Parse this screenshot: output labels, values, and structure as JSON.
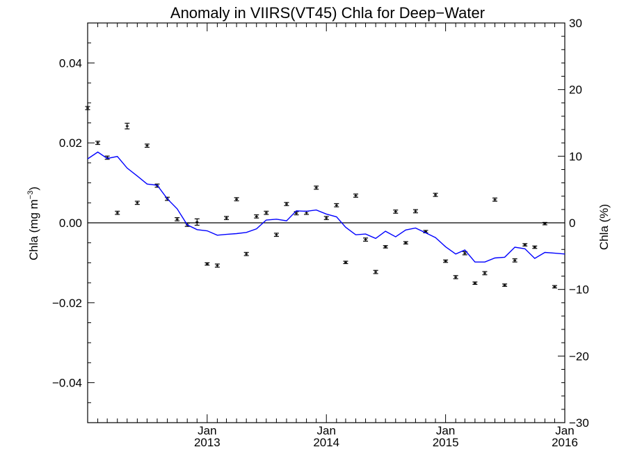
{
  "chart_data": {
    "type": "line",
    "title": "Anomaly in VIIRS(VT45) Chla for Deep−Water",
    "ylabel": "Chla (mg m",
    "ylabel_sup": "−3",
    "ylabel_close": ")",
    "y2label": "Chla (%)",
    "xlim": [
      "2012-01-01",
      "2016-01-01"
    ],
    "ylim": [
      -0.05,
      0.05
    ],
    "y2lim": [
      -30,
      30
    ],
    "yticks": [
      -0.04,
      -0.02,
      0.0,
      0.02,
      0.04
    ],
    "ytick_labels": [
      "−0.04",
      "−0.02",
      "0.00",
      "0.02",
      "0.04"
    ],
    "y2ticks": [
      -30,
      -20,
      -10,
      0,
      10,
      20,
      30
    ],
    "y2tick_labels": [
      "−30",
      "−20",
      "−10",
      "0",
      "10",
      "20",
      "30"
    ],
    "xticks": [
      {
        "date": "2013-01-01",
        "month": "Jan",
        "year": "2013"
      },
      {
        "date": "2014-01-01",
        "month": "Jan",
        "year": "2014"
      },
      {
        "date": "2015-01-01",
        "month": "Jan",
        "year": "2015"
      },
      {
        "date": "2016-01-01",
        "month": "Jan",
        "year": "2016"
      }
    ],
    "zero_line": true,
    "grid": false,
    "series": [
      {
        "kind": "points_with_errorbars",
        "color": "#000000",
        "x": [
          "2012-01-01",
          "2012-02-01",
          "2012-03-01",
          "2012-04-01",
          "2012-05-01",
          "2012-06-01",
          "2012-07-01",
          "2012-08-01",
          "2012-09-01",
          "2012-10-01",
          "2012-11-01",
          "2012-12-01",
          "2013-01-01",
          "2013-02-01",
          "2013-03-01",
          "2013-04-01",
          "2013-05-01",
          "2013-06-01",
          "2013-07-01",
          "2013-08-01",
          "2013-09-01",
          "2013-10-01",
          "2013-11-01",
          "2013-12-01",
          "2014-01-01",
          "2014-02-01",
          "2014-03-01",
          "2014-04-01",
          "2014-05-01",
          "2014-06-01",
          "2014-07-01",
          "2014-08-01",
          "2014-09-01",
          "2014-10-01",
          "2014-11-01",
          "2014-12-01",
          "2015-01-01",
          "2015-02-01",
          "2015-03-01",
          "2015-04-01",
          "2015-05-01",
          "2015-06-01",
          "2015-07-01",
          "2015-08-01",
          "2015-09-01",
          "2015-10-01",
          "2015-11-01",
          "2015-12-01"
        ],
        "y": [
          0.0287,
          0.02,
          0.0163,
          0.0025,
          0.0242,
          0.005,
          0.0193,
          0.0093,
          0.006,
          0.0009,
          -0.0005,
          0.0002,
          -0.0103,
          -0.0107,
          0.0012,
          0.0059,
          -0.0078,
          0.0016,
          0.0025,
          -0.003,
          0.0047,
          0.0024,
          0.0025,
          0.0088,
          0.0012,
          0.0044,
          -0.0099,
          0.0068,
          -0.0042,
          -0.0123,
          -0.006,
          0.0028,
          -0.005,
          0.0029,
          -0.0022,
          0.007,
          -0.0096,
          -0.0136,
          -0.0076,
          -0.0151,
          -0.0126,
          0.0058,
          -0.0156,
          -0.0094,
          -0.0055,
          -0.0061,
          -0.0002,
          -0.016
        ],
        "err": [
          0.0004,
          0.0004,
          0.0004,
          0.0004,
          0.0007,
          0.0004,
          0.0004,
          0.0004,
          0.0004,
          0.0004,
          0.0004,
          0.0008,
          0.0003,
          0.0004,
          0.0004,
          0.0004,
          0.0004,
          0.0004,
          0.0004,
          0.0004,
          0.0004,
          0.0004,
          0.0004,
          0.0004,
          0.0004,
          0.0004,
          0.0003,
          0.0004,
          0.0004,
          0.0004,
          0.0003,
          0.0004,
          0.0003,
          0.0004,
          0.0003,
          0.0004,
          0.0003,
          0.0004,
          0.0004,
          0.0003,
          0.0004,
          0.0004,
          0.0003,
          0.0004,
          0.0003,
          0.0003,
          0.0003,
          0.0003
        ]
      },
      {
        "kind": "line",
        "color": "#0000ff",
        "x": [
          "2012-01-01",
          "2012-02-01",
          "2012-03-01",
          "2012-04-01",
          "2012-05-01",
          "2012-06-01",
          "2012-07-01",
          "2012-08-01",
          "2012-09-01",
          "2012-10-01",
          "2012-11-01",
          "2012-12-01",
          "2013-01-01",
          "2013-02-01",
          "2013-03-01",
          "2013-04-01",
          "2013-05-01",
          "2013-06-01",
          "2013-07-01",
          "2013-08-01",
          "2013-09-01",
          "2013-10-01",
          "2013-11-01",
          "2013-12-01",
          "2014-01-01",
          "2014-02-01",
          "2014-03-01",
          "2014-04-01",
          "2014-05-01",
          "2014-06-01",
          "2014-07-01",
          "2014-08-01",
          "2014-09-01",
          "2014-10-01",
          "2014-11-01",
          "2014-12-01",
          "2015-01-01",
          "2015-02-01",
          "2015-03-01",
          "2015-04-01",
          "2015-05-01",
          "2015-06-01",
          "2015-07-01",
          "2015-08-01",
          "2015-09-01",
          "2015-10-01",
          "2015-11-01",
          "2015-12-01",
          "2016-01-01"
        ],
        "y": [
          0.016,
          0.0177,
          0.0161,
          0.0166,
          0.0137,
          0.0117,
          0.0097,
          0.0094,
          0.006,
          0.0035,
          -0.0005,
          -0.0017,
          -0.002,
          -0.0031,
          -0.0029,
          -0.0027,
          -0.0024,
          -0.0015,
          0.0007,
          0.0009,
          0.0005,
          0.003,
          0.0029,
          0.0032,
          0.0022,
          0.0015,
          -0.0011,
          -0.003,
          -0.0028,
          -0.0039,
          -0.0021,
          -0.0035,
          -0.0018,
          -0.0013,
          -0.0025,
          -0.0037,
          -0.006,
          -0.0078,
          -0.0068,
          -0.0098,
          -0.0098,
          -0.0088,
          -0.0086,
          -0.0061,
          -0.0065,
          -0.0089,
          -0.0074,
          -0.0076,
          -0.0078
        ]
      }
    ]
  }
}
